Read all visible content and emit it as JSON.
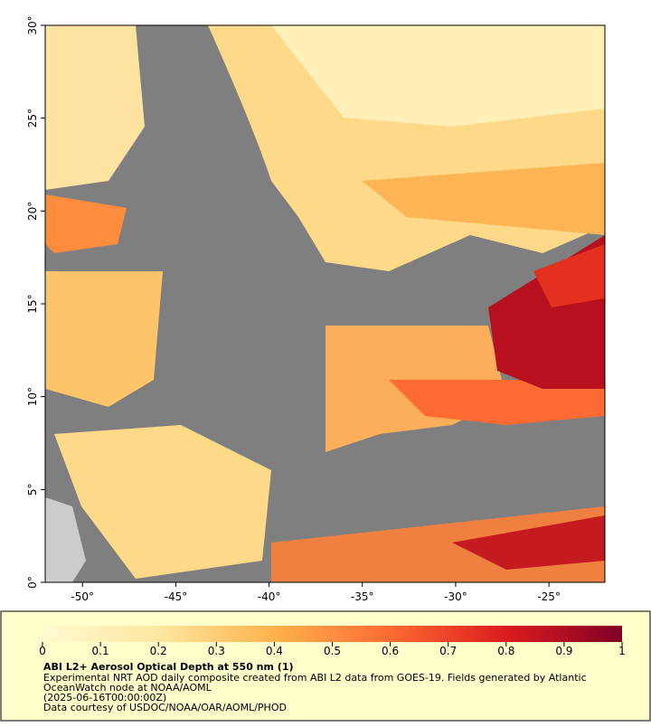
{
  "map": {
    "xlim": [
      -52,
      -22
    ],
    "ylim": [
      0,
      30
    ],
    "xticks": [
      {
        "value": -50,
        "label": "-50°"
      },
      {
        "value": -45,
        "label": "-45°"
      },
      {
        "value": -40,
        "label": "-40°"
      },
      {
        "value": -35,
        "label": "-35°"
      },
      {
        "value": -30,
        "label": "-30°"
      },
      {
        "value": -25,
        "label": "-25°"
      }
    ],
    "yticks": [
      {
        "value": 0,
        "label": "0°"
      },
      {
        "value": 5,
        "label": "5°"
      },
      {
        "value": 10,
        "label": "10°"
      },
      {
        "value": 15,
        "label": "15°"
      },
      {
        "value": 20,
        "label": "20°"
      },
      {
        "value": 25,
        "label": "25°"
      },
      {
        "value": 30,
        "label": "30°"
      }
    ]
  },
  "colorbar": {
    "range": [
      0,
      1
    ],
    "ticks": [
      0,
      0.1,
      0.2,
      0.3,
      0.4,
      0.5,
      0.6,
      0.7,
      0.8,
      0.9,
      1
    ]
  },
  "caption": {
    "title": "ABI L2+ Aerosol Optical Depth at 550 nm (1)",
    "lines": [
      "Experimental NRT AOD daily composite created from ABI L2 data from GOES-19. Fields generated by Atlantic",
      "OceanWatch node at NOAA/AOML",
      "(2025-06-16T00:00:00Z)",
      "Data courtesy of USDOC/NOAA/OAR/AOML/PHOD"
    ]
  }
}
